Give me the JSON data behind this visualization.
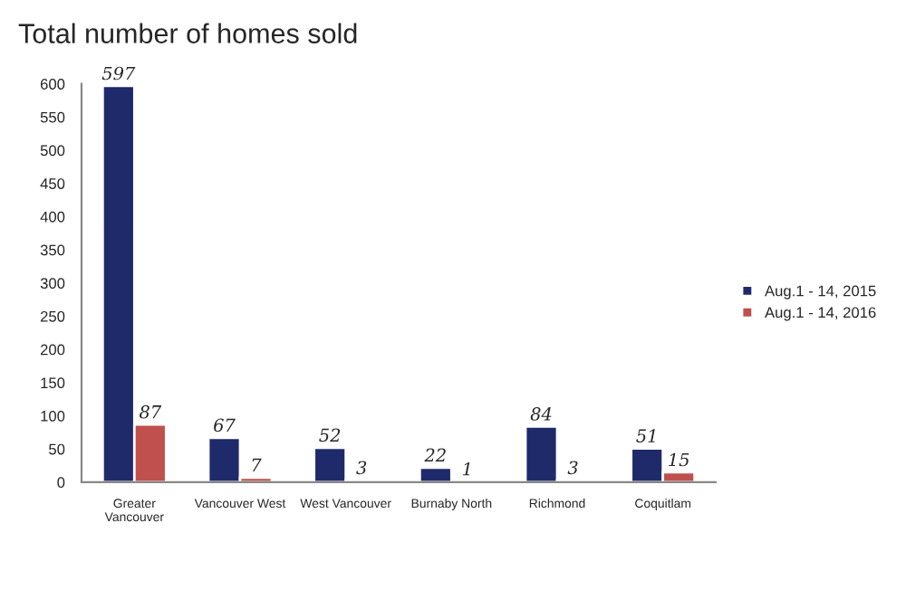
{
  "chart_data": {
    "type": "bar",
    "title": "Total number of homes sold",
    "categories": [
      "Greater\nVancouver",
      "Vancouver West",
      "West Vancouver",
      "Burnaby North",
      "Richmond",
      "Coquitlam"
    ],
    "series": [
      {
        "name": "Aug.1 - 14, 2015",
        "color": "#1f2a6b",
        "values": [
          597,
          67,
          52,
          22,
          84,
          51
        ]
      },
      {
        "name": "Aug.1 - 14, 2016",
        "color": "#c0504d",
        "values": [
          87,
          7,
          3,
          1,
          3,
          15
        ]
      }
    ],
    "ylim": [
      0,
      600
    ],
    "yticks": [
      0,
      50,
      100,
      150,
      200,
      250,
      300,
      350,
      400,
      450,
      500,
      550,
      600
    ],
    "data_labels": true,
    "legend": "right",
    "grid": false
  }
}
